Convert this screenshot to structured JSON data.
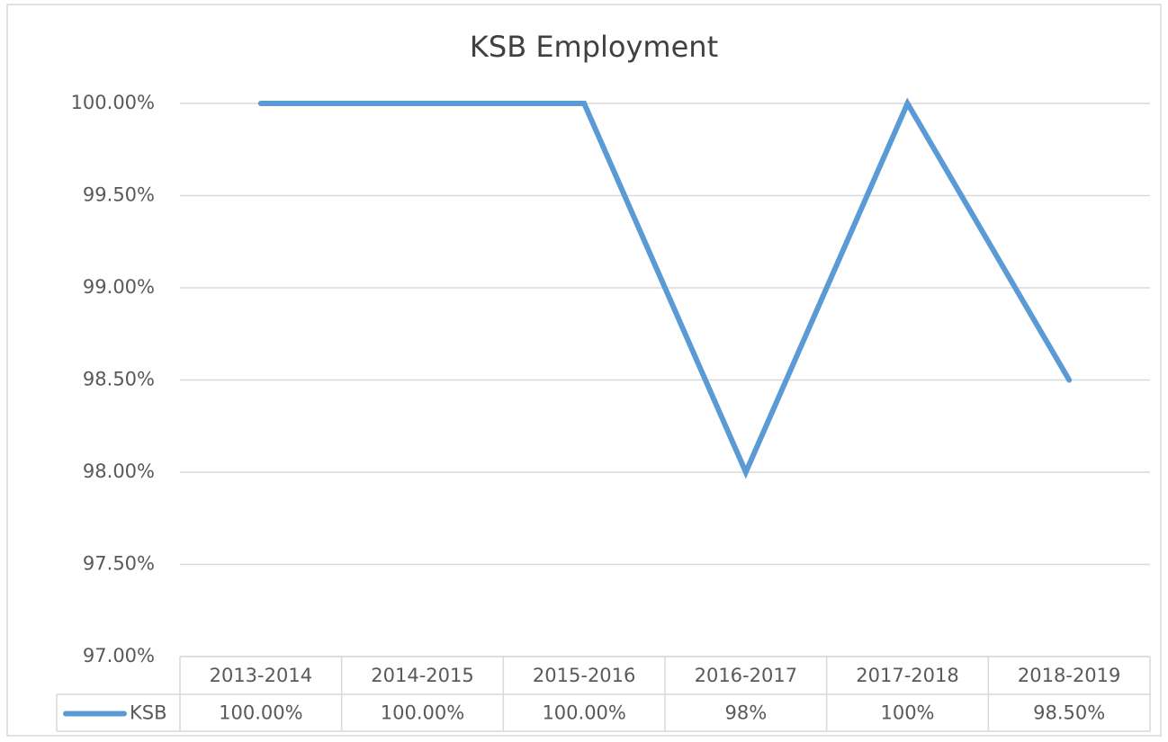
{
  "chart_data": {
    "type": "line",
    "title": "KSB Employment",
    "categories": [
      "2013-2014",
      "2014-2015",
      "2015-2016",
      "2016-2017",
      "2017-2018",
      "2018-2019"
    ],
    "series": [
      {
        "name": "KSB",
        "color": "#5b9bd5",
        "values": [
          100,
          100,
          100,
          98,
          100,
          98.5
        ],
        "value_labels": [
          "100.00%",
          "100.00%",
          "100.00%",
          "98%",
          "100%",
          "98.50%"
        ]
      }
    ],
    "ylim": [
      97,
      100
    ],
    "yticks": [
      {
        "value": 97,
        "label": "97.00%"
      },
      {
        "value": 97.5,
        "label": "97.50%"
      },
      {
        "value": 98,
        "label": "98.00%"
      },
      {
        "value": 98.5,
        "label": "98.50%"
      },
      {
        "value": 99,
        "label": "99.00%"
      },
      {
        "value": 99.5,
        "label": "99.50%"
      },
      {
        "value": 100,
        "label": "100.00%"
      }
    ],
    "grid": true,
    "data_table": true
  }
}
